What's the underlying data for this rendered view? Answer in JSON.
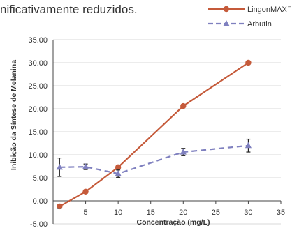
{
  "header": {
    "text": "nificativamente reduzidos."
  },
  "chart_data": {
    "type": "line",
    "title": "",
    "xlabel": "Concentração (mg/L)",
    "ylabel": "Inibição da Síntese de Melanina",
    "xlim": [
      0,
      35
    ],
    "ylim": [
      -5,
      35
    ],
    "x_ticks": [
      "5",
      "10",
      "15",
      "20",
      "25",
      "30",
      "35"
    ],
    "y_ticks": [
      "-5.00",
      "0.00",
      "5.00",
      "10.00",
      "15.00",
      "20.00",
      "25.00",
      "30.00",
      "35.00"
    ],
    "grid": "horizontal",
    "legend_position": "top-right",
    "series": [
      {
        "name": "LingonMAX",
        "name_suffix": "™",
        "color": "#c55a3a",
        "line_style": "solid",
        "marker": "circle",
        "x": [
          1,
          5,
          10,
          20,
          30
        ],
        "y": [
          -1.2,
          2.0,
          7.3,
          20.6,
          30.0
        ],
        "error": [
          0.5,
          0.2,
          0.4,
          0.3,
          0.2
        ]
      },
      {
        "name": "Arbutin",
        "color": "#7f80bf",
        "line_style": "dashed",
        "marker": "triangle",
        "x": [
          1,
          5,
          10,
          20,
          30
        ],
        "y": [
          7.3,
          7.4,
          5.9,
          10.6,
          12.0
        ],
        "error": [
          2.0,
          0.6,
          0.8,
          0.8,
          1.4
        ]
      }
    ]
  }
}
